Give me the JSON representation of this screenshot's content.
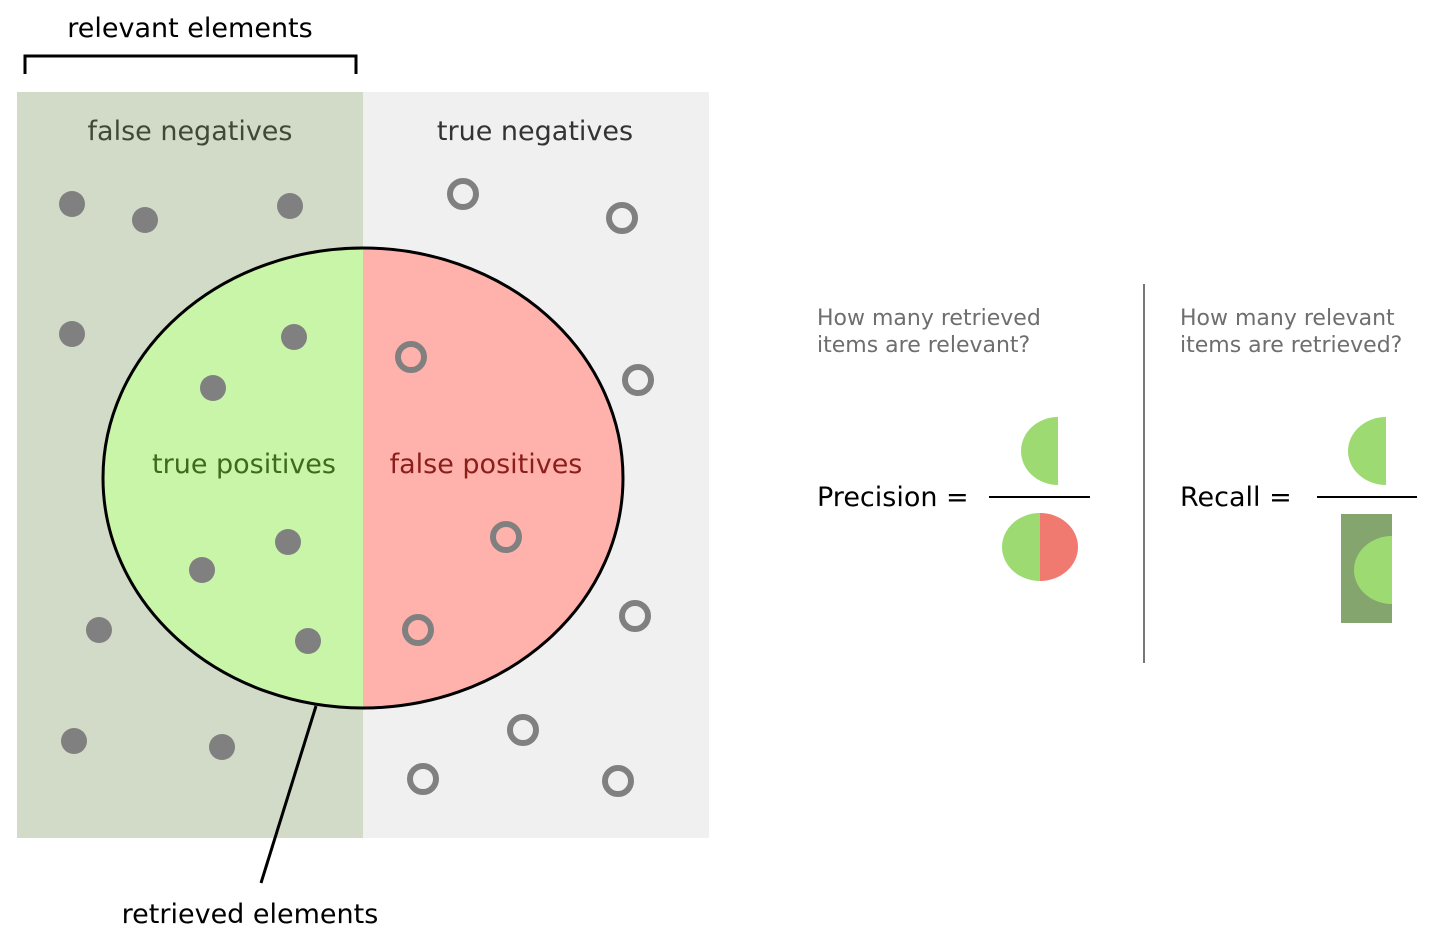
{
  "labels": {
    "relevant_elements": "relevant elements",
    "false_negatives": "false negatives",
    "true_negatives": "true negatives",
    "true_positives": "true positives",
    "false_positives": "false positives",
    "retrieved_elements": "retrieved elements"
  },
  "precision": {
    "question_line1": "How many retrieved",
    "question_line2": "items are relevant?",
    "formula_label": "Precision ="
  },
  "recall": {
    "question_line1": "How many relevant",
    "question_line2": "items are retrieved?",
    "formula_label": "Recall ="
  },
  "colors": {
    "relevant_region": "#d2dbc8",
    "irrelevant_region": "#f0f0f0",
    "true_positive_fill": "#c9f5a8",
    "false_positive_fill": "#ffb1ab",
    "true_positive_text": "#3d6a1b",
    "false_positive_text": "#8a1e1a",
    "false_negative_text": "#3f4a36",
    "true_negative_text": "#333333",
    "dot": "#808080",
    "icon_green": "#9ddb72",
    "icon_red": "#f07970",
    "icon_dark_green": "#85a56f",
    "divider": "#777777"
  }
}
